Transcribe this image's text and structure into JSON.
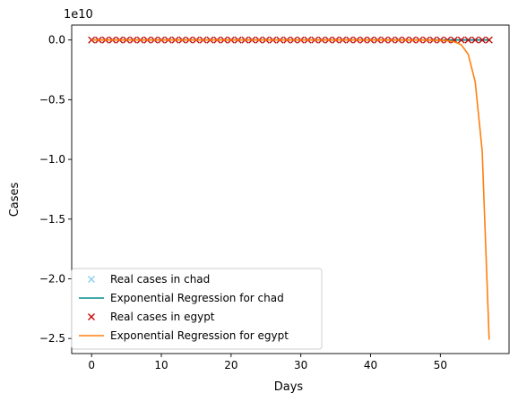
{
  "chart_data": {
    "type": "line",
    "xlabel": "Days",
    "ylabel": "Cases",
    "scale_label": "1e10",
    "xlim": [
      -2.85,
      59.85
    ],
    "ylim": [
      -2.626,
      0.125
    ],
    "scale": 10000000000,
    "x_ticks": [
      0,
      10,
      20,
      30,
      40,
      50
    ],
    "x_tick_labels": [
      "0",
      "10",
      "20",
      "30",
      "40",
      "50"
    ],
    "y_ticks": [
      0.0,
      -0.5,
      -1.0,
      -1.5,
      -2.0,
      -2.5
    ],
    "y_tick_labels": [
      "0.0",
      "−0.5",
      "−1.0",
      "−1.5",
      "−2.0",
      "−2.5"
    ],
    "grid": false,
    "legend_position": "lower-left",
    "series": [
      {
        "name": "Real cases in chad",
        "kind": "marker",
        "color": "#87ceeb",
        "x": [
          0,
          1,
          2,
          3,
          4,
          5,
          6,
          7,
          8,
          9,
          10,
          11,
          12,
          13,
          14,
          15,
          16,
          17,
          18,
          19,
          20,
          21,
          22,
          23,
          24,
          25,
          26,
          27,
          28,
          29,
          30,
          31,
          32,
          33,
          34,
          35,
          36,
          37,
          38,
          39,
          40,
          41,
          42,
          43,
          44,
          45,
          46,
          47,
          48,
          49,
          50,
          51,
          52,
          53,
          54,
          55,
          56,
          57
        ],
        "y": [
          0,
          0,
          0,
          0,
          0,
          0,
          0,
          0,
          0,
          0,
          0,
          0,
          0,
          0,
          0,
          0,
          0,
          0,
          0,
          0,
          0,
          0,
          0,
          0,
          0,
          0,
          0,
          0,
          0,
          0,
          0,
          0,
          0,
          0,
          0,
          0,
          0,
          0,
          0,
          0,
          0,
          0,
          0,
          0,
          0,
          0,
          0,
          0,
          0,
          0,
          0,
          0,
          0,
          0,
          0,
          0,
          0,
          0
        ]
      },
      {
        "name": "Exponential Regression for chad",
        "kind": "line",
        "color": "#008b8b",
        "x": [
          0,
          57
        ],
        "y": [
          0,
          0
        ]
      },
      {
        "name": "Real cases in egypt",
        "kind": "marker",
        "color": "#cc0000",
        "x": [
          0,
          1,
          2,
          3,
          4,
          5,
          6,
          7,
          8,
          9,
          10,
          11,
          12,
          13,
          14,
          15,
          16,
          17,
          18,
          19,
          20,
          21,
          22,
          23,
          24,
          25,
          26,
          27,
          28,
          29,
          30,
          31,
          32,
          33,
          34,
          35,
          36,
          37,
          38,
          39,
          40,
          41,
          42,
          43,
          44,
          45,
          46,
          47,
          48,
          49,
          50,
          51,
          52,
          53,
          54,
          55,
          56,
          57
        ],
        "y": [
          0,
          0,
          0,
          0,
          0,
          0,
          0,
          0,
          0,
          0,
          0,
          0,
          0,
          0,
          0,
          0,
          0,
          0,
          0,
          0,
          0,
          0,
          0,
          0,
          0,
          0,
          0,
          0,
          0,
          0,
          0,
          0,
          0,
          0,
          0,
          0,
          0,
          0,
          0,
          0,
          0,
          0,
          0,
          0,
          0,
          0,
          0,
          0,
          0,
          0,
          0,
          0,
          0,
          0,
          0,
          0,
          0,
          0
        ]
      },
      {
        "name": "Exponential Regression for egypt",
        "kind": "line",
        "color": "#ff7f0e",
        "x": [
          0,
          10,
          20,
          30,
          40,
          48,
          50,
          51,
          52,
          53,
          54,
          55,
          56,
          57
        ],
        "y": [
          0,
          0,
          0,
          0,
          0,
          -0.001,
          -0.003,
          -0.006,
          -0.015,
          -0.04,
          -0.12,
          -0.35,
          -0.93,
          -2.51
        ]
      }
    ]
  }
}
